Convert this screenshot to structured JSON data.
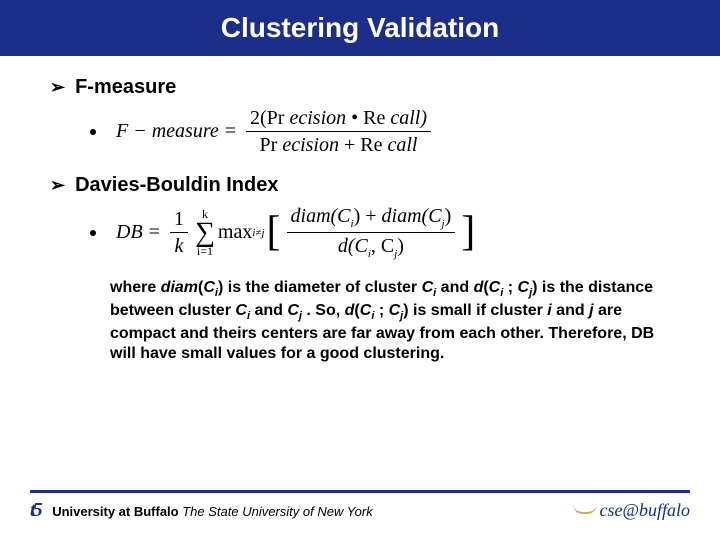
{
  "colors": {
    "header_bg": "#1a2e8a",
    "header_text": "#ffffff",
    "body_text": "#000000",
    "accent_gold": "#d4a84a",
    "background": "#ffffff"
  },
  "title": "Clustering Validation",
  "bullets": {
    "b1": {
      "arrow": "➢",
      "label": "F-measure"
    },
    "b2": {
      "arrow": "➢",
      "label": "Davies-Bouldin Index"
    }
  },
  "formula1": {
    "lhs": "F − measure",
    "eq": "=",
    "num_pre": "2(Pr ",
    "num_mid1": "ecision",
    "num_dot": " • ",
    "num_mid2": "Re ",
    "num_post": "call)",
    "den_pre": "Pr ",
    "den_mid1": "ecision",
    "den_plus": " + ",
    "den_mid2": "Re ",
    "den_post": "call"
  },
  "formula2": {
    "lhs": "DB",
    "eq": "=",
    "frac1_num": "1",
    "frac1_den": "k",
    "sum_top": "k",
    "sum_bot": "i=1",
    "max_label": "max",
    "max_sub": "i≠j",
    "inner_num_a": "diam(C",
    "inner_num_a_sub": "i",
    "inner_num_plus": ") + ",
    "inner_num_b": "diam(C",
    "inner_num_b_sub": "j",
    "inner_num_close": ")",
    "inner_den": "d(C",
    "inner_den_sub1": "i",
    "inner_den_comma": ", C",
    "inner_den_sub2": "j",
    "inner_den_close": ")"
  },
  "explain": {
    "t1": "where ",
    "t2": "diam",
    "t3": "(",
    "t4": "C",
    "t4s": "i",
    "t5": ") is the diameter of cluster ",
    "t6": "C",
    "t6s": "i",
    "t7": " and ",
    "t8": "d",
    "t9": "(",
    "t10": "C",
    "t10s": "i",
    "t11": " ; ",
    "t12": "C",
    "t12s": "j",
    "t13": ") is the distance between cluster ",
    "t14": "C",
    "t14s": "i",
    "t15": " and ",
    "t16": "C",
    "t16s": "j",
    "t17": " . So, ",
    "t18": "d",
    "t19": "(",
    "t20": "C",
    "t20s": "i",
    "t21": " ; ",
    "t22": "C",
    "t22s": "j",
    "t23": ") is small if cluster ",
    "t24": "i",
    "t25": " and ",
    "t26": "j",
    "t27": " are compact and theirs centers are far away from each other. Therefore, DB will have  small values for a good clustering."
  },
  "footer": {
    "left_bold": "University at Buffalo",
    "left_italic": "The State University of New York",
    "right": "cse@buffalo"
  }
}
